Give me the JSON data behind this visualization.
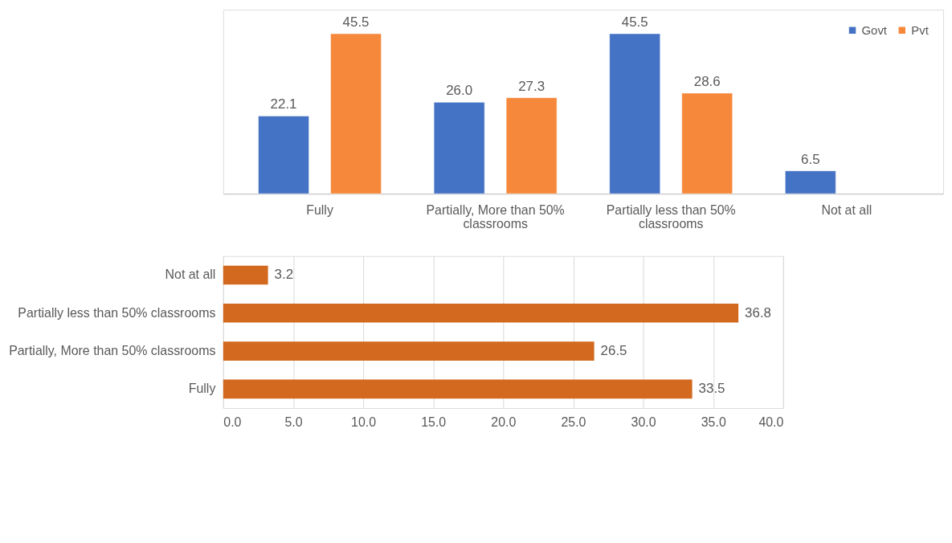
{
  "chart_data": [
    {
      "type": "bar",
      "categories": [
        "Fully",
        "Partially, More than 50% classrooms",
        "Partially less than 50% classrooms",
        "Not at all"
      ],
      "series": [
        {
          "name": "Govt",
          "color": "#4472c4",
          "values": [
            22.1,
            26.0,
            45.5,
            6.5
          ],
          "value_labels": [
            "22.1",
            "26.0",
            "45.5",
            "6.5"
          ]
        },
        {
          "name": "Pvt",
          "color": "#f5883a",
          "values": [
            45.5,
            27.3,
            28.6,
            null
          ],
          "value_labels": [
            "45.5",
            "27.3",
            "28.6",
            null
          ]
        }
      ],
      "data_labels": true,
      "legend": "top right",
      "grid": false
    },
    {
      "type": "bar",
      "orientation": "horizontal",
      "categories": [
        "Not at all",
        "Partially less than 50% classrooms",
        "Partially, More than 50% classrooms",
        "Fully"
      ],
      "values": [
        3.2,
        36.8,
        26.5,
        33.5
      ],
      "color": "#d2691e",
      "xlim": [
        0,
        40
      ],
      "xticks": [
        {
          "value": 0,
          "label": "0.0"
        },
        {
          "value": 5,
          "label": "5.0"
        },
        {
          "value": 10,
          "label": "10.0"
        },
        {
          "value": 15,
          "label": "15.0"
        },
        {
          "value": 20,
          "label": "20.0"
        },
        {
          "value": 25,
          "label": "25.0"
        },
        {
          "value": 30,
          "label": "30.0"
        },
        {
          "value": 35,
          "label": "35.0"
        },
        {
          "value": 40,
          "label": "40.0"
        }
      ],
      "data_labels": true,
      "grid": "x"
    }
  ]
}
